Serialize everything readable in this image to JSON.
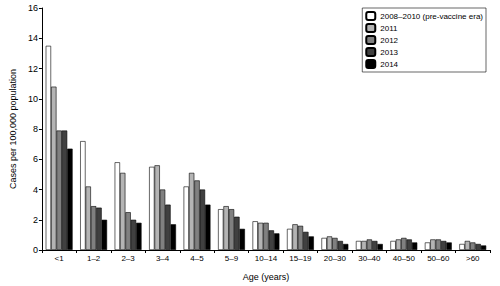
{
  "chart_data": {
    "type": "bar",
    "x_label": "Age (years)",
    "y_label": "Cases per 100,000 population",
    "categories": [
      "<1",
      "1–2",
      "2–3",
      "3–4",
      "4–5",
      "5–9",
      "10–14",
      "15–19",
      "20–30",
      "30–40",
      "40–50",
      "50–60",
      ">60"
    ],
    "series": [
      {
        "name": "2008–2010 (pre-vaccine era)",
        "color": "#ffffff",
        "values": [
          13.5,
          7.2,
          5.8,
          5.5,
          4.2,
          2.7,
          1.9,
          1.4,
          0.8,
          0.6,
          0.6,
          0.5,
          0.4
        ]
      },
      {
        "name": "2011",
        "color": "#b4b4b4",
        "values": [
          10.8,
          4.2,
          5.1,
          5.6,
          5.1,
          2.9,
          1.8,
          1.7,
          0.9,
          0.6,
          0.7,
          0.7,
          0.6
        ]
      },
      {
        "name": "2012",
        "color": "#808080",
        "values": [
          7.9,
          2.9,
          2.5,
          4.0,
          4.6,
          2.7,
          1.8,
          1.6,
          0.8,
          0.7,
          0.8,
          0.7,
          0.5
        ]
      },
      {
        "name": "2013",
        "color": "#404040",
        "values": [
          7.9,
          2.8,
          2.0,
          3.0,
          4.0,
          2.2,
          1.3,
          1.2,
          0.6,
          0.6,
          0.7,
          0.6,
          0.4
        ]
      },
      {
        "name": "2014",
        "color": "#000000",
        "values": [
          6.7,
          2.0,
          1.8,
          1.7,
          3.0,
          1.4,
          1.1,
          0.9,
          0.4,
          0.4,
          0.5,
          0.5,
          0.3
        ]
      }
    ],
    "ylim": [
      0,
      16
    ],
    "yticks": [
      0,
      2,
      4,
      6,
      8,
      10,
      12,
      14,
      16
    ],
    "grid": false,
    "legend": "upper right"
  }
}
